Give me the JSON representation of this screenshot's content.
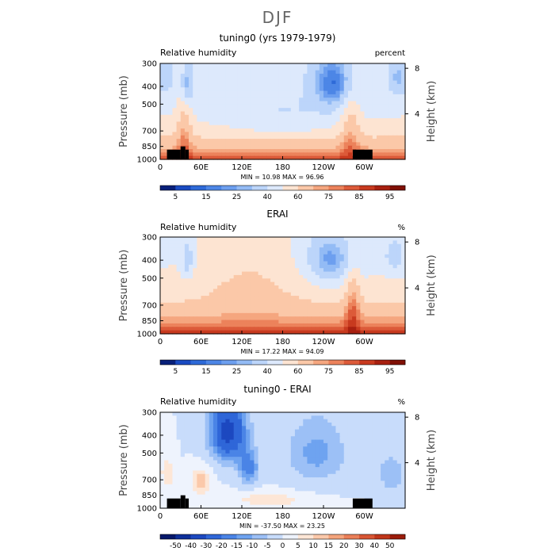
{
  "suptitle": "DJF",
  "chart_data": [
    {
      "type": "heatmap",
      "title": "tuning0 (yrs 1979-1979)",
      "left_header": "Relative humidity",
      "right_header": "percent",
      "ylabel": "Pressure (mb)",
      "ylabel_right": "Height (km)",
      "y_ticks": [
        "300",
        "400",
        "500",
        "700",
        "850",
        "1000"
      ],
      "y_tick_values": [
        300,
        400,
        500,
        700,
        850,
        1000
      ],
      "y_right_ticks": [
        "8",
        "4"
      ],
      "y_right_values": [
        8,
        4
      ],
      "x_ticks": [
        "0",
        "60E",
        "120E",
        "180",
        "120W",
        "60W"
      ],
      "x_tick_values": [
        0,
        60,
        120,
        180,
        240,
        300
      ],
      "xlim": [
        0,
        360
      ],
      "ylim": [
        1000,
        300
      ],
      "min_label": "MIN =",
      "min_value": "10.98",
      "max_label": "MAX =",
      "max_value": "96.96",
      "colorbar_labels": [
        "5",
        "15",
        "25",
        "40",
        "60",
        "75",
        "85",
        "95"
      ],
      "colorbar_colors": [
        "#08207a",
        "#1a4bc2",
        "#2e6ad8",
        "#4d86e6",
        "#6d9fef",
        "#93bbf5",
        "#bcd5fa",
        "#dde9fc",
        "#fde4d2",
        "#fbc8a8",
        "#f5a67f",
        "#ec825b",
        "#dc5a39",
        "#c83a1f",
        "#a82010",
        "#801005"
      ]
    },
    {
      "type": "heatmap",
      "title": "ERAI",
      "left_header": "Relative humidity",
      "right_header": "%",
      "ylabel": "Pressure (mb)",
      "ylabel_right": "Height (km)",
      "y_ticks": [
        "300",
        "400",
        "500",
        "700",
        "850",
        "1000"
      ],
      "y_tick_values": [
        300,
        400,
        500,
        700,
        850,
        1000
      ],
      "y_right_ticks": [
        "8",
        "4"
      ],
      "y_right_values": [
        8,
        4
      ],
      "x_ticks": [
        "0",
        "60E",
        "120E",
        "180",
        "120W",
        "60W"
      ],
      "x_tick_values": [
        0,
        60,
        120,
        180,
        240,
        300
      ],
      "xlim": [
        0,
        360
      ],
      "ylim": [
        1000,
        300
      ],
      "min_label": "MIN =",
      "min_value": "17.22",
      "max_label": "MAX =",
      "max_value": "94.09",
      "colorbar_labels": [
        "5",
        "15",
        "25",
        "40",
        "60",
        "75",
        "85",
        "95"
      ],
      "colorbar_colors": [
        "#08207a",
        "#1a4bc2",
        "#2e6ad8",
        "#4d86e6",
        "#6d9fef",
        "#93bbf5",
        "#bcd5fa",
        "#dde9fc",
        "#fde4d2",
        "#fbc8a8",
        "#f5a67f",
        "#ec825b",
        "#dc5a39",
        "#c83a1f",
        "#a82010",
        "#801005"
      ]
    },
    {
      "type": "heatmap",
      "title": "tuning0 - ERAI",
      "left_header": "Relative humidity",
      "right_header": "%",
      "ylabel": "Pressure (mb)",
      "ylabel_right": "Height (km)",
      "y_ticks": [
        "300",
        "400",
        "500",
        "700",
        "850",
        "1000"
      ],
      "y_tick_values": [
        300,
        400,
        500,
        700,
        850,
        1000
      ],
      "y_right_ticks": [
        "8",
        "4"
      ],
      "y_right_values": [
        8,
        4
      ],
      "x_ticks": [
        "0",
        "60E",
        "120E",
        "180",
        "120W",
        "60W"
      ],
      "x_tick_values": [
        0,
        60,
        120,
        180,
        240,
        300
      ],
      "xlim": [
        0,
        360
      ],
      "ylim": [
        1000,
        300
      ],
      "min_label": "MIN =",
      "min_value": "-37.50",
      "max_label": "MAX =",
      "max_value": "23.25",
      "colorbar_labels": [
        "-50",
        "-40",
        "-30",
        "-20",
        "-15",
        "-10",
        "-5",
        "0",
        "5",
        "10",
        "15",
        "20",
        "30",
        "40",
        "50"
      ],
      "colorbar_colors": [
        "#06186a",
        "#0d2f9a",
        "#1c48c0",
        "#2f66d8",
        "#4a84e6",
        "#6ea3f0",
        "#9cc0f6",
        "#c8dcfb",
        "#eef3fd",
        "#fde6d6",
        "#fbc9aa",
        "#f4a47c",
        "#ea7f58",
        "#d85634",
        "#c0361a",
        "#9b1c0a"
      ]
    }
  ]
}
